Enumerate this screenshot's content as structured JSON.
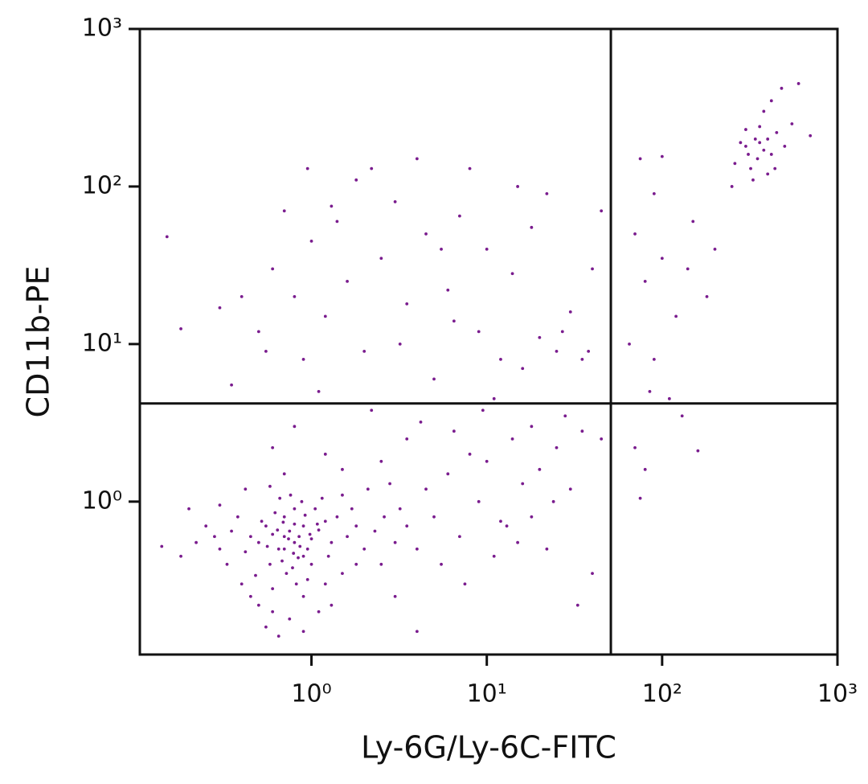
{
  "chart_data": {
    "type": "scatter",
    "x_label": "Ly-6G/Ly-6C-FITC",
    "y_label": "CD11b-PE",
    "xscale": "log",
    "yscale": "log",
    "grid": false,
    "xlim": [
      0.105,
      1000
    ],
    "ylim": [
      0.107,
      1000
    ],
    "xticks": [
      {
        "value": 1,
        "label": "10⁰"
      },
      {
        "value": 10,
        "label": "10¹"
      },
      {
        "value": 100,
        "label": "10²"
      },
      {
        "value": 1000,
        "label": "10³"
      }
    ],
    "yticks": [
      {
        "value": 1,
        "label": "10⁰"
      },
      {
        "value": 10,
        "label": "10¹"
      },
      {
        "value": 100,
        "label": "10²"
      },
      {
        "value": 1000,
        "label": "10³"
      }
    ],
    "gates": {
      "x": 51,
      "y": 4.2
    },
    "color": "#7a1c8e",
    "x": [
      0.7,
      0.8,
      0.9,
      0.65,
      0.75,
      0.85,
      1.0,
      0.6,
      0.55,
      0.95,
      0.7,
      0.8,
      0.9,
      0.68,
      0.78,
      1.1,
      1.2,
      0.5,
      0.45,
      0.62,
      0.88,
      1.05,
      0.72,
      0.58,
      0.82,
      0.95,
      1.3,
      1.4,
      0.42,
      0.52,
      0.66,
      0.76,
      1.15,
      1.25,
      0.48,
      0.6,
      0.9,
      1.0,
      0.7,
      0.8,
      0.74,
      0.86,
      0.64,
      0.92,
      1.08,
      0.56,
      0.84,
      0.98,
      0.69,
      0.79,
      1.6,
      1.8,
      2.0,
      1.7,
      2.3,
      2.6,
      1.5,
      2.1,
      0.35,
      0.3,
      0.38,
      0.33,
      0.28,
      0.25,
      0.22,
      0.4,
      0.5,
      0.6,
      0.75,
      0.9,
      0.65,
      1.2,
      1.5,
      1.8,
      2.5,
      3.0,
      3.5,
      4.0,
      3.2,
      2.8,
      1.1,
      1.3,
      0.55,
      0.45,
      0.2,
      0.18,
      0.14,
      0.3,
      0.42,
      0.58,
      4.5,
      5,
      6,
      7,
      8,
      9,
      10,
      12,
      14,
      16,
      18,
      20,
      22,
      25,
      28,
      30,
      35,
      40,
      5.5,
      7.5,
      11,
      13,
      3.5,
      4.2,
      2.5,
      6.5,
      9.5,
      15,
      24,
      33,
      1.2,
      0.8,
      0.6,
      1.5,
      0.7,
      2.2,
      3,
      4,
      18,
      45,
      0.5,
      0.6,
      0.7,
      0.8,
      0.9,
      1.0,
      1.2,
      1.4,
      1.6,
      1.8,
      2.0,
      2.5,
      3,
      3.5,
      4,
      4.5,
      5,
      6,
      7,
      8,
      9,
      10,
      12,
      14,
      16,
      18,
      20,
      22,
      25,
      30,
      35,
      40,
      45,
      0.35,
      0.4,
      0.55,
      1.1,
      2.2,
      0.3,
      0.18,
      0.15,
      3.2,
      6.5,
      27,
      38,
      15,
      0.95,
      11,
      5.5,
      1.3,
      300,
      350,
      400,
      320,
      380,
      420,
      280,
      450,
      360,
      330,
      400,
      500,
      550,
      600,
      480,
      380,
      420,
      300,
      260,
      340,
      700,
      250,
      440,
      360,
      310,
      70,
      80,
      90,
      100,
      120,
      150,
      180,
      200,
      75,
      100,
      65,
      85,
      110,
      130,
      160,
      70,
      80,
      75,
      90,
      140
    ],
    "values": [
      0.6,
      0.55,
      0.7,
      0.5,
      0.65,
      0.6,
      0.58,
      0.62,
      0.7,
      0.5,
      0.8,
      0.9,
      0.45,
      0.42,
      0.38,
      0.66,
      0.75,
      0.55,
      0.6,
      0.85,
      1.0,
      0.9,
      0.35,
      0.4,
      0.3,
      0.32,
      0.55,
      0.8,
      0.48,
      0.75,
      1.05,
      1.1,
      1.05,
      0.45,
      0.34,
      0.28,
      0.25,
      0.4,
      0.5,
      0.72,
      0.58,
      0.52,
      0.66,
      0.82,
      0.72,
      0.52,
      0.44,
      0.62,
      0.74,
      0.47,
      0.6,
      0.7,
      0.5,
      0.9,
      0.65,
      0.8,
      1.1,
      1.2,
      0.65,
      0.5,
      0.8,
      0.4,
      0.6,
      0.7,
      0.55,
      0.3,
      0.22,
      0.2,
      0.18,
      0.15,
      0.14,
      0.3,
      0.35,
      0.4,
      0.4,
      0.55,
      0.7,
      0.5,
      0.9,
      1.3,
      0.2,
      0.22,
      0.16,
      0.25,
      0.9,
      0.45,
      0.52,
      0.95,
      1.2,
      1.25,
      1.2,
      0.8,
      1.5,
      0.6,
      2.0,
      1.0,
      1.8,
      0.75,
      2.5,
      1.3,
      3.0,
      1.6,
      0.5,
      2.2,
      3.5,
      1.2,
      2.8,
      0.35,
      0.4,
      0.3,
      0.45,
      0.7,
      2.5,
      3.2,
      1.8,
      2.8,
      3.8,
      0.55,
      1.0,
      0.22,
      2.0,
      3.0,
      2.2,
      1.6,
      1.5,
      3.8,
      0.25,
      0.15,
      0.8,
      2.5,
      12,
      30,
      70,
      20,
      8,
      45,
      15,
      60,
      25,
      110,
      9,
      35,
      80,
      18,
      150,
      50,
      6,
      22,
      65,
      130,
      12,
      40,
      8,
      28,
      7,
      55,
      11,
      90,
      9,
      16,
      8,
      30,
      70,
      5.5,
      20,
      9,
      5,
      130,
      17,
      12.5,
      48,
      10,
      14,
      12,
      9,
      100,
      130,
      4.5,
      40,
      75,
      180,
      150,
      200,
      130,
      170,
      160,
      190,
      220,
      240,
      110,
      120,
      180,
      250,
      450,
      420,
      300,
      350,
      230,
      140,
      200,
      210,
      100,
      130,
      190,
      160,
      50,
      25,
      90,
      35,
      15,
      60,
      20,
      40,
      150,
      155,
      10,
      5,
      4.5,
      3.5,
      2.1,
      2.2,
      1.6,
      1.05,
      8,
      30
    ]
  }
}
